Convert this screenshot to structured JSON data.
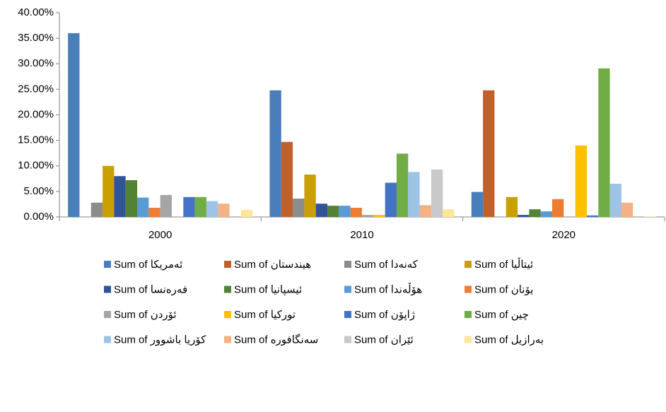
{
  "chart_data": {
    "type": "bar",
    "categories": [
      "2000",
      "2010",
      "2020"
    ],
    "series": [
      {
        "name": "Sum of ئەمریکا",
        "color": "#4a7ebb",
        "values": [
          36,
          24.8,
          4.9
        ]
      },
      {
        "name": "Sum of هیندستان",
        "color": "#c0612b",
        "values": [
          0,
          14.7,
          24.8
        ]
      },
      {
        "name": "Sum of کەنەدا",
        "color": "#8c8c8c",
        "values": [
          2.8,
          3.6,
          0
        ]
      },
      {
        "name": "Sum of ئیتاڵیا",
        "color": "#c9a000",
        "values": [
          10,
          8.3,
          3.9
        ]
      },
      {
        "name": "Sum of فەرەنسا",
        "color": "#2f5597",
        "values": [
          8,
          2.6,
          0.4
        ]
      },
      {
        "name": "Sum of ئیسپانیا",
        "color": "#548235",
        "values": [
          7.2,
          2.2,
          1.5
        ]
      },
      {
        "name": "Sum of هۆڵەندا",
        "color": "#5b9bd5",
        "values": [
          3.8,
          2.2,
          1.1
        ]
      },
      {
        "name": "Sum of یۆنان",
        "color": "#ed7d31",
        "values": [
          1.8,
          1.8,
          3.5
        ]
      },
      {
        "name": "Sum of ئۆردن",
        "color": "#a5a5a5",
        "values": [
          4.3,
          0.4,
          0.1
        ]
      },
      {
        "name": "Sum of تورکیا",
        "color": "#ffc000",
        "values": [
          0,
          0.4,
          14
        ]
      },
      {
        "name": "Sum of ژاپۆن",
        "color": "#4472c4",
        "values": [
          3.9,
          6.7,
          0.3
        ]
      },
      {
        "name": "Sum of چین",
        "color": "#70ad47",
        "values": [
          3.9,
          12.4,
          29.1
        ]
      },
      {
        "name": "Sum of کۆریا باشوور",
        "color": "#9dc3e6",
        "values": [
          3.1,
          8.8,
          6.5
        ]
      },
      {
        "name": "Sum of سەنگافورە",
        "color": "#f4b183",
        "values": [
          2.6,
          2.3,
          2.8
        ]
      },
      {
        "name": "Sum of ئێران",
        "color": "#c9c9c9",
        "values": [
          0,
          9.3,
          0
        ]
      },
      {
        "name": "Sum of بەرازیل",
        "color": "#ffe699",
        "values": [
          1.4,
          1.5,
          0.1
        ]
      }
    ],
    "ylim": [
      0,
      40
    ],
    "yticks": [
      {
        "value": 0,
        "label": "0.00%"
      },
      {
        "value": 5,
        "label": "5.00%"
      },
      {
        "value": 10,
        "label": "10.00%"
      },
      {
        "value": 15,
        "label": "15.00%"
      },
      {
        "value": 20,
        "label": "20.00%"
      },
      {
        "value": 25,
        "label": "25.00%"
      },
      {
        "value": 30,
        "label": "30.00%"
      },
      {
        "value": 35,
        "label": "35.00%"
      },
      {
        "value": 40,
        "label": "40.00%"
      }
    ],
    "grid": false
  }
}
